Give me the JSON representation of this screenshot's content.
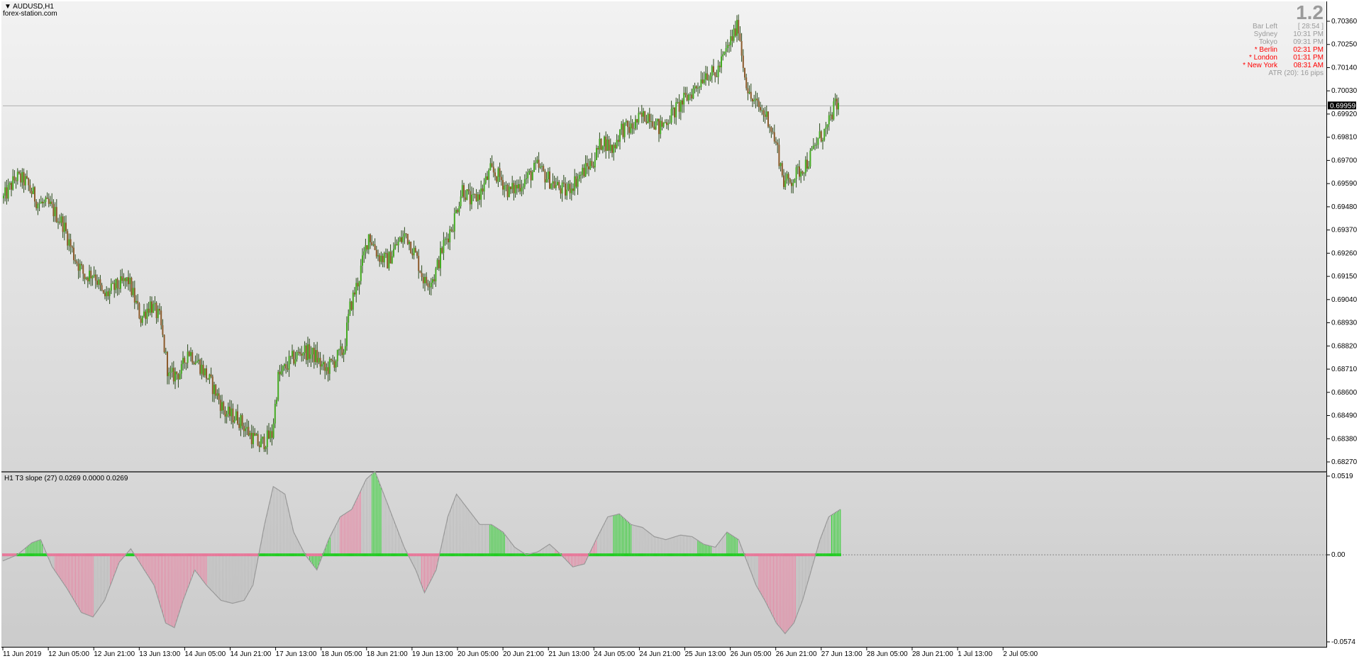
{
  "header": {
    "symbol": "AUDUSD,H1",
    "site": "forex-station.com"
  },
  "info": {
    "big_value": "1.2",
    "rows": [
      {
        "label": "Bar Left",
        "value": "[ 28:54 ]",
        "highlight": false
      },
      {
        "label": "Sydney",
        "value": "10:31 PM",
        "highlight": false
      },
      {
        "label": "Tokyo",
        "value": "09:31 PM",
        "highlight": false
      },
      {
        "label": "* Berlin",
        "value": "02:31 PM",
        "highlight": true
      },
      {
        "label": "* London",
        "value": "01:31 PM",
        "highlight": true
      },
      {
        "label": "* New York",
        "value": "08:31 AM",
        "highlight": true
      }
    ],
    "atr": "ATR (20): 16 pips"
  },
  "indicator": {
    "label": "H1 T3 slope (27) 0.0269 0.0000 0.0269",
    "axis_labels": [
      "0.0519",
      "0.00",
      "-0.0574"
    ],
    "colors": {
      "up": "#22cc22",
      "down": "#e8789a",
      "neutral": "#b8b8b8",
      "line": "#999999"
    }
  },
  "price_axis": {
    "labels": [
      "0.70360",
      "0.70250",
      "0.70140",
      "0.70030",
      "0.69920",
      "0.69810",
      "0.69700",
      "0.69590",
      "0.69480",
      "0.69370",
      "0.69260",
      "0.69150",
      "0.69040",
      "0.68930",
      "0.68820",
      "0.68710",
      "0.68600",
      "0.68490",
      "0.68380",
      "0.68270"
    ],
    "current_price": "0.69959"
  },
  "time_axis": {
    "labels": [
      "11 Jun 2019",
      "12 Jun 05:00",
      "12 Jun 21:00",
      "13 Jun 13:00",
      "14 Jun 05:00",
      "14 Jun 21:00",
      "17 Jun 13:00",
      "18 Jun 05:00",
      "18 Jun 21:00",
      "19 Jun 13:00",
      "20 Jun 05:00",
      "20 Jun 21:00",
      "21 Jun 13:00",
      "24 Jun 05:00",
      "24 Jun 21:00",
      "25 Jun 13:00",
      "26 Jun 05:00",
      "26 Jun 21:00",
      "27 Jun 13:00",
      "28 Jun 05:00",
      "28 Jun 21:00",
      "1 Jul 13:00",
      "2 Jul 05:00"
    ]
  },
  "colors": {
    "bull": "#44aa22",
    "bear": "#8b5a2b",
    "wick": "#2a4a1a",
    "price_line": "#b0b0b0"
  },
  "chart_data": {
    "type": "candlestick",
    "symbol": "AUDUSD",
    "timeframe": "H1",
    "ylim": [
      0.6827,
      0.7036
    ],
    "close_path": [
      [
        0,
        0.6952
      ],
      [
        8,
        0.6962
      ],
      [
        14,
        0.696
      ],
      [
        22,
        0.695
      ],
      [
        30,
        0.6948
      ],
      [
        38,
        0.694
      ],
      [
        45,
        0.6925
      ],
      [
        52,
        0.6915
      ],
      [
        58,
        0.6917
      ],
      [
        64,
        0.6905
      ],
      [
        72,
        0.691
      ],
      [
        80,
        0.6913
      ],
      [
        88,
        0.6895
      ],
      [
        94,
        0.6902
      ],
      [
        100,
        0.6895
      ],
      [
        106,
        0.6867
      ],
      [
        114,
        0.687
      ],
      [
        118,
        0.688
      ],
      [
        124,
        0.6875
      ],
      [
        130,
        0.6868
      ],
      [
        136,
        0.686
      ],
      [
        142,
        0.685
      ],
      [
        150,
        0.6848
      ],
      [
        158,
        0.684
      ],
      [
        164,
        0.6835
      ],
      [
        172,
        0.684
      ],
      [
        176,
        0.6867
      ],
      [
        184,
        0.6875
      ],
      [
        192,
        0.688
      ],
      [
        200,
        0.6877
      ],
      [
        206,
        0.687
      ],
      [
        212,
        0.6875
      ],
      [
        218,
        0.688
      ],
      [
        222,
        0.69
      ],
      [
        228,
        0.6915
      ],
      [
        234,
        0.6935
      ],
      [
        240,
        0.6925
      ],
      [
        246,
        0.6922
      ],
      [
        252,
        0.693
      ],
      [
        258,
        0.6935
      ],
      [
        264,
        0.6925
      ],
      [
        270,
        0.6912
      ],
      [
        276,
        0.6915
      ],
      [
        282,
        0.693
      ],
      [
        288,
        0.694
      ],
      [
        294,
        0.6957
      ],
      [
        300,
        0.695
      ],
      [
        306,
        0.6955
      ],
      [
        312,
        0.6965
      ],
      [
        318,
        0.6962
      ],
      [
        324,
        0.6955
      ],
      [
        330,
        0.6958
      ],
      [
        336,
        0.6962
      ],
      [
        342,
        0.6967
      ],
      [
        348,
        0.6962
      ],
      [
        354,
        0.6958
      ],
      [
        360,
        0.6955
      ],
      [
        366,
        0.696
      ],
      [
        372,
        0.6965
      ],
      [
        378,
        0.697
      ],
      [
        384,
        0.698
      ],
      [
        390,
        0.6975
      ],
      [
        396,
        0.6985
      ],
      [
        402,
        0.6985
      ],
      [
        408,
        0.699
      ],
      [
        414,
        0.6992
      ],
      [
        420,
        0.6985
      ],
      [
        426,
        0.699
      ],
      [
        432,
        0.6995
      ],
      [
        438,
        0.7
      ],
      [
        444,
        0.7005
      ],
      [
        450,
        0.7012
      ],
      [
        456,
        0.701
      ],
      [
        462,
        0.702
      ],
      [
        468,
        0.703
      ],
      [
        471,
        0.7034
      ],
      [
        474,
        0.7015
      ],
      [
        478,
        0.7
      ],
      [
        484,
        0.6995
      ],
      [
        490,
        0.699
      ],
      [
        496,
        0.6975
      ],
      [
        500,
        0.696
      ],
      [
        504,
        0.696
      ],
      [
        510,
        0.6965
      ],
      [
        516,
        0.697
      ],
      [
        522,
        0.698
      ],
      [
        528,
        0.6985
      ],
      [
        532,
        0.6995
      ],
      [
        535,
        0.6996
      ]
    ]
  },
  "indicator_data": {
    "type": "histogram+line",
    "ylim": [
      -0.0574,
      0.0519
    ],
    "line_path": [
      [
        0,
        -0.004
      ],
      [
        10,
        0.0
      ],
      [
        20,
        0.008
      ],
      [
        26,
        0.01
      ],
      [
        34,
        -0.008
      ],
      [
        44,
        -0.022
      ],
      [
        54,
        -0.038
      ],
      [
        62,
        -0.041
      ],
      [
        70,
        -0.03
      ],
      [
        80,
        -0.005
      ],
      [
        88,
        0.004
      ],
      [
        96,
        -0.008
      ],
      [
        104,
        -0.02
      ],
      [
        112,
        -0.045
      ],
      [
        118,
        -0.048
      ],
      [
        124,
        -0.03
      ],
      [
        132,
        -0.01
      ],
      [
        140,
        -0.02
      ],
      [
        150,
        -0.03
      ],
      [
        158,
        -0.032
      ],
      [
        166,
        -0.03
      ],
      [
        172,
        -0.02
      ],
      [
        180,
        0.02
      ],
      [
        186,
        0.045
      ],
      [
        194,
        0.04
      ],
      [
        200,
        0.015
      ],
      [
        208,
        0.0
      ],
      [
        216,
        -0.01
      ],
      [
        224,
        0.01
      ],
      [
        232,
        0.025
      ],
      [
        240,
        0.03
      ],
      [
        250,
        0.05
      ],
      [
        256,
        0.055
      ],
      [
        262,
        0.04
      ],
      [
        268,
        0.025
      ],
      [
        276,
        0.005
      ],
      [
        284,
        -0.01
      ],
      [
        290,
        -0.025
      ],
      [
        298,
        -0.01
      ],
      [
        306,
        0.025
      ],
      [
        312,
        0.04
      ],
      [
        320,
        0.03
      ],
      [
        328,
        0.02
      ],
      [
        336,
        0.02
      ],
      [
        344,
        0.015
      ],
      [
        352,
        0.005
      ],
      [
        360,
        0.0
      ],
      [
        368,
        0.002
      ],
      [
        376,
        0.007
      ],
      [
        384,
        0.0
      ],
      [
        392,
        -0.008
      ],
      [
        400,
        -0.006
      ],
      [
        408,
        0.01
      ],
      [
        416,
        0.025
      ],
      [
        424,
        0.027
      ],
      [
        432,
        0.02
      ],
      [
        440,
        0.018
      ],
      [
        448,
        0.012
      ],
      [
        456,
        0.01
      ],
      [
        466,
        0.013
      ],
      [
        474,
        0.012
      ],
      [
        482,
        0.007
      ],
      [
        490,
        0.005
      ],
      [
        498,
        0.015
      ],
      [
        506,
        0.01
      ],
      [
        512,
        -0.005
      ],
      [
        518,
        -0.02
      ],
      [
        524,
        -0.03
      ],
      [
        532,
        -0.045
      ],
      [
        538,
        -0.052
      ],
      [
        544,
        -0.045
      ],
      [
        550,
        -0.03
      ],
      [
        556,
        -0.01
      ],
      [
        562,
        0.01
      ],
      [
        568,
        0.025
      ],
      [
        576,
        0.03
      ]
    ],
    "up_ranges": [
      [
        16,
        27
      ],
      [
        211,
        225
      ],
      [
        254,
        260
      ],
      [
        335,
        345
      ],
      [
        420,
        432
      ],
      [
        478,
        487
      ],
      [
        498,
        505
      ],
      [
        570,
        576
      ]
    ],
    "down_ranges": [
      [
        36,
        62
      ],
      [
        74,
        85
      ],
      [
        90,
        140
      ],
      [
        232,
        246
      ],
      [
        288,
        300
      ],
      [
        380,
        408
      ],
      [
        520,
        545
      ]
    ]
  }
}
